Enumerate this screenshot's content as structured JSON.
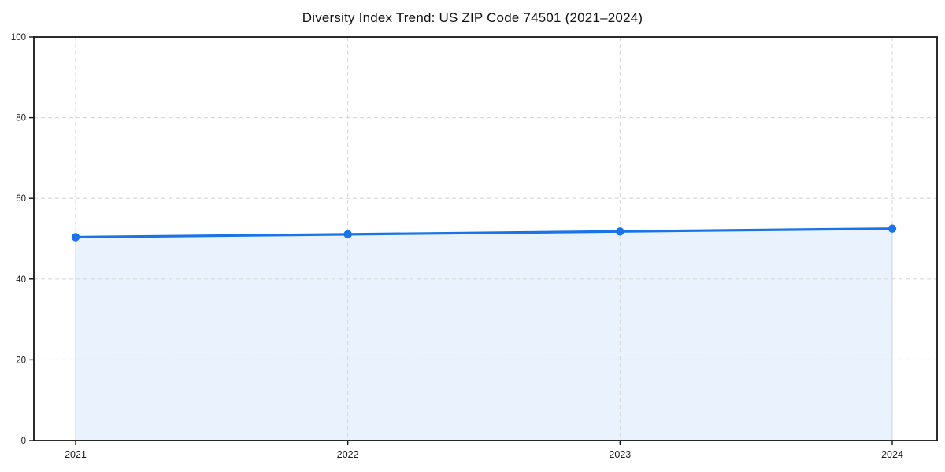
{
  "chart_data": {
    "type": "area",
    "title": "Diversity Index Trend: US ZIP Code 74501 (2021–2024)",
    "xlabel": "",
    "ylabel": "",
    "categories": [
      "2021",
      "2022",
      "2023",
      "2024"
    ],
    "series": [
      {
        "name": "Diversity Index",
        "values": [
          50.4,
          51.1,
          51.8,
          52.5
        ]
      }
    ],
    "ylim": [
      0,
      100
    ],
    "yticks": [
      0,
      20,
      40,
      60,
      80,
      100
    ],
    "grid": "dashed",
    "legend_position": "none",
    "style": {
      "line_color": "#1a73e8",
      "marker_color": "#1a73e8",
      "fill_color": "#1a73e8",
      "fill_opacity": 0.09,
      "fill_edge_color": "#1a73e8",
      "fill_edge_opacity": 0.22,
      "grid_color": "#d9d9d9",
      "spine_color": "#141414",
      "tick_color": "#141414",
      "text_color": "#1a1a1a",
      "background_color": "#ffffff"
    }
  }
}
